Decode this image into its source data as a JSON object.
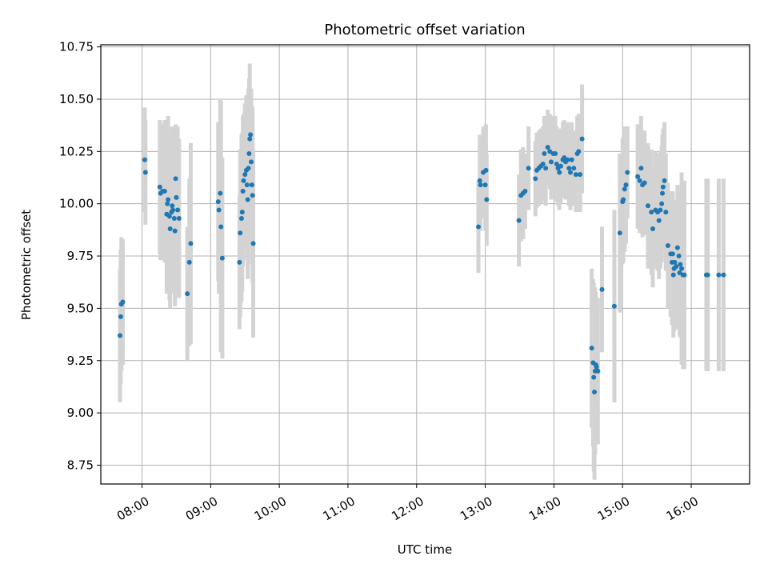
{
  "chart_data": {
    "type": "scatter",
    "title": "Photometric offset variation",
    "xlabel": "UTC time",
    "ylabel": "Photometric offset",
    "xlim": [
      7.4,
      16.85
    ],
    "ylim": [
      8.66,
      10.76
    ],
    "grid": true,
    "point_color": "#1f77b4",
    "errorbar_color": "#d3d3d3",
    "x_ticks": [
      {
        "value": 8,
        "label": "08:00"
      },
      {
        "value": 9,
        "label": "09:00"
      },
      {
        "value": 10,
        "label": "10:00"
      },
      {
        "value": 11,
        "label": "11:00"
      },
      {
        "value": 12,
        "label": "12:00"
      },
      {
        "value": 13,
        "label": "13:00"
      },
      {
        "value": 14,
        "label": "14:00"
      },
      {
        "value": 15,
        "label": "15:00"
      },
      {
        "value": 16,
        "label": "16:00"
      }
    ],
    "y_ticks": [
      {
        "value": 8.75,
        "label": "8.75"
      },
      {
        "value": 9.0,
        "label": "9.00"
      },
      {
        "value": 9.25,
        "label": "9.25"
      },
      {
        "value": 9.5,
        "label": "9.50"
      },
      {
        "value": 9.75,
        "label": "9.75"
      },
      {
        "value": 10.0,
        "label": "10.00"
      },
      {
        "value": 10.25,
        "label": "10.25"
      },
      {
        "value": 10.5,
        "label": "10.50"
      },
      {
        "value": 10.75,
        "label": "10.75"
      }
    ],
    "points": [
      [
        7.68,
        9.37,
        0.32
      ],
      [
        7.69,
        9.46,
        0.32
      ],
      [
        7.7,
        9.52,
        0.32
      ],
      [
        7.72,
        9.53,
        0.3
      ],
      [
        8.04,
        10.21,
        0.25
      ],
      [
        8.05,
        10.15,
        0.25
      ],
      [
        8.26,
        10.08,
        0.32
      ],
      [
        8.27,
        10.05,
        0.32
      ],
      [
        8.3,
        10.06,
        0.32
      ],
      [
        8.33,
        10.06,
        0.34
      ],
      [
        8.36,
        9.95,
        0.38
      ],
      [
        8.37,
        10.0,
        0.4
      ],
      [
        8.38,
        10.02,
        0.4
      ],
      [
        8.4,
        9.94,
        0.4
      ],
      [
        8.41,
        9.88,
        0.38
      ],
      [
        8.43,
        9.96,
        0.38
      ],
      [
        8.44,
        9.99,
        0.38
      ],
      [
        8.45,
        9.97,
        0.36
      ],
      [
        8.47,
        9.93,
        0.36
      ],
      [
        8.48,
        9.87,
        0.36
      ],
      [
        8.49,
        10.12,
        0.26
      ],
      [
        8.5,
        10.03,
        0.34
      ],
      [
        8.52,
        9.97,
        0.4
      ],
      [
        8.54,
        9.93,
        0.38
      ],
      [
        8.66,
        9.57,
        0.32
      ],
      [
        8.69,
        9.72,
        0.4
      ],
      [
        8.71,
        9.81,
        0.48
      ],
      [
        9.11,
        10.01,
        0.38
      ],
      [
        9.12,
        9.97,
        0.4
      ],
      [
        9.14,
        10.05,
        0.45
      ],
      [
        9.15,
        9.89,
        0.6
      ],
      [
        9.17,
        9.74,
        0.48
      ],
      [
        9.42,
        9.72,
        0.32
      ],
      [
        9.43,
        9.86,
        0.4
      ],
      [
        9.45,
        9.93,
        0.4
      ],
      [
        9.46,
        9.96,
        0.38
      ],
      [
        9.47,
        10.06,
        0.36
      ],
      [
        9.48,
        10.11,
        0.32
      ],
      [
        9.5,
        10.14,
        0.34
      ],
      [
        9.52,
        10.16,
        0.36
      ],
      [
        9.53,
        10.09,
        0.36
      ],
      [
        9.54,
        10.02,
        0.38
      ],
      [
        9.55,
        10.17,
        0.38
      ],
      [
        9.56,
        10.24,
        0.36
      ],
      [
        9.57,
        10.31,
        0.36
      ],
      [
        9.58,
        10.33,
        0.22
      ],
      [
        9.59,
        10.2,
        0.35
      ],
      [
        9.6,
        10.09,
        0.38
      ],
      [
        9.61,
        10.04,
        0.42
      ],
      [
        9.62,
        9.81,
        0.45
      ],
      [
        12.9,
        9.89,
        0.22
      ],
      [
        12.92,
        10.11,
        0.22
      ],
      [
        12.93,
        10.09,
        0.22
      ],
      [
        12.97,
        10.15,
        0.22
      ],
      [
        13.0,
        10.09,
        0.22
      ],
      [
        13.01,
        10.16,
        0.22
      ],
      [
        13.02,
        10.02,
        0.22
      ],
      [
        13.49,
        9.92,
        0.22
      ],
      [
        13.52,
        10.04,
        0.22
      ],
      [
        13.55,
        10.05,
        0.22
      ],
      [
        13.58,
        10.06,
        0.18
      ],
      [
        13.63,
        10.17,
        0.2
      ],
      [
        13.73,
        10.12,
        0.18
      ],
      [
        13.75,
        10.16,
        0.18
      ],
      [
        13.78,
        10.17,
        0.18
      ],
      [
        13.81,
        10.18,
        0.18
      ],
      [
        13.84,
        10.19,
        0.18
      ],
      [
        13.86,
        10.24,
        0.18
      ],
      [
        13.88,
        10.17,
        0.18
      ],
      [
        13.91,
        10.27,
        0.18
      ],
      [
        13.94,
        10.25,
        0.18
      ],
      [
        13.96,
        10.2,
        0.18
      ],
      [
        13.99,
        10.24,
        0.18
      ],
      [
        14.02,
        10.24,
        0.18
      ],
      [
        14.04,
        10.19,
        0.18
      ],
      [
        14.06,
        10.17,
        0.18
      ],
      [
        14.08,
        10.15,
        0.18
      ],
      [
        14.1,
        10.18,
        0.18
      ],
      [
        14.13,
        10.21,
        0.18
      ],
      [
        14.15,
        10.22,
        0.18
      ],
      [
        14.17,
        10.2,
        0.18
      ],
      [
        14.2,
        10.21,
        0.18
      ],
      [
        14.22,
        10.17,
        0.18
      ],
      [
        14.24,
        10.15,
        0.18
      ],
      [
        14.26,
        10.21,
        0.18
      ],
      [
        14.29,
        10.17,
        0.18
      ],
      [
        14.32,
        10.14,
        0.18
      ],
      [
        14.34,
        10.24,
        0.18
      ],
      [
        14.36,
        10.25,
        0.18
      ],
      [
        14.38,
        10.14,
        0.18
      ],
      [
        14.41,
        10.31,
        0.26
      ],
      [
        14.55,
        9.31,
        0.38
      ],
      [
        14.57,
        9.24,
        0.4
      ],
      [
        14.58,
        9.17,
        0.45
      ],
      [
        14.59,
        9.1,
        0.42
      ],
      [
        14.6,
        9.2,
        0.4
      ],
      [
        14.61,
        9.23,
        0.35
      ],
      [
        14.62,
        9.22,
        0.3
      ],
      [
        14.64,
        9.2,
        0.35
      ],
      [
        14.7,
        9.59,
        0.3
      ],
      [
        14.88,
        9.51,
        0.46
      ],
      [
        14.96,
        9.86,
        0.38
      ],
      [
        15.0,
        10.01,
        0.3
      ],
      [
        15.01,
        10.02,
        0.3
      ],
      [
        15.03,
        10.07,
        0.3
      ],
      [
        15.05,
        10.09,
        0.28
      ],
      [
        15.07,
        10.15,
        0.22
      ],
      [
        15.22,
        10.13,
        0.25
      ],
      [
        15.25,
        10.11,
        0.25
      ],
      [
        15.27,
        10.17,
        0.25
      ],
      [
        15.29,
        10.09,
        0.25
      ],
      [
        15.32,
        10.1,
        0.25
      ],
      [
        15.37,
        9.99,
        0.3
      ],
      [
        15.42,
        9.96,
        0.3
      ],
      [
        15.44,
        9.88,
        0.28
      ],
      [
        15.48,
        9.97,
        0.28
      ],
      [
        15.51,
        9.96,
        0.28
      ],
      [
        15.53,
        9.92,
        0.28
      ],
      [
        15.55,
        9.97,
        0.28
      ],
      [
        15.57,
        10.0,
        0.28
      ],
      [
        15.58,
        10.05,
        0.28
      ],
      [
        15.59,
        10.08,
        0.28
      ],
      [
        15.61,
        10.11,
        0.28
      ],
      [
        15.63,
        9.96,
        0.28
      ],
      [
        15.66,
        9.8,
        0.3
      ],
      [
        15.7,
        9.76,
        0.3
      ],
      [
        15.72,
        9.72,
        0.3
      ],
      [
        15.73,
        9.76,
        0.3
      ],
      [
        15.74,
        9.66,
        0.3
      ],
      [
        15.75,
        9.69,
        0.3
      ],
      [
        15.76,
        9.72,
        0.3
      ],
      [
        15.78,
        9.7,
        0.3
      ],
      [
        15.8,
        9.79,
        0.3
      ],
      [
        15.82,
        9.75,
        0.3
      ],
      [
        15.83,
        9.67,
        0.3
      ],
      [
        15.84,
        9.71,
        0.35
      ],
      [
        15.86,
        9.69,
        0.46
      ],
      [
        15.88,
        9.66,
        0.45
      ],
      [
        15.9,
        9.66,
        0.45
      ],
      [
        16.22,
        9.66,
        0.46
      ],
      [
        16.24,
        9.66,
        0.46
      ],
      [
        16.4,
        9.66,
        0.46
      ],
      [
        16.47,
        9.66,
        0.46
      ]
    ]
  }
}
